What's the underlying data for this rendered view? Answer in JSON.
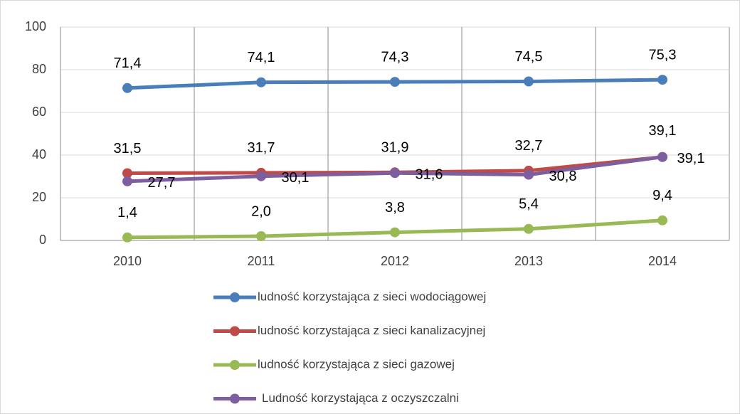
{
  "chart_data": {
    "type": "line",
    "categories": [
      "2010",
      "2011",
      "2012",
      "2013",
      "2014"
    ],
    "series": [
      {
        "name": "ludność korzystająca z sieci wodociągowej",
        "color": "#4a7ebb",
        "values": [
          71.4,
          74.1,
          74.3,
          74.5,
          75.3
        ],
        "value_labels": [
          "71,4",
          "74,1",
          "74,3",
          "74,5",
          "75,3"
        ]
      },
      {
        "name": "ludność korzystająca z sieci kanalizacyjnej",
        "color": "#be4b48",
        "values": [
          31.5,
          31.7,
          31.9,
          32.7,
          39.1
        ],
        "value_labels": [
          "31,5",
          "31,7",
          "31,9",
          "32,7",
          "39,1"
        ]
      },
      {
        "name": "ludność korzystająca z sieci gazowej",
        "color": "#98b954",
        "values": [
          1.4,
          2.0,
          3.8,
          5.4,
          9.4
        ],
        "value_labels": [
          "1,4",
          "2,0",
          "3,8",
          "5,4",
          "9,4"
        ]
      },
      {
        "name": "Ludność korzystająca z oczyszczalni",
        "color": "#7d5fa0",
        "values": [
          27.7,
          30.1,
          31.6,
          30.8,
          39.1
        ],
        "value_labels": [
          "27,7",
          "30,1",
          "31,6",
          "30,8",
          "39,1"
        ]
      }
    ],
    "ylim": [
      0,
      100
    ],
    "yticks": [
      0,
      20,
      40,
      60,
      80,
      100
    ],
    "grid": true,
    "legend": "bottom"
  }
}
